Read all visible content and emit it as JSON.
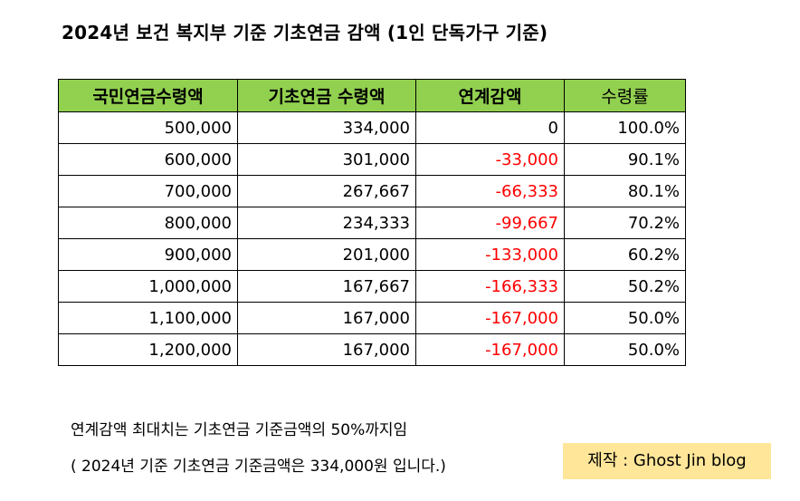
{
  "title": "2024년 보건 복지부 기준 기초연금 감액 (1인 단독가구 기준)",
  "table": {
    "headers": [
      "국민연금수령액",
      "기초연금 수령액",
      "연계감액",
      "수령률"
    ],
    "rows": [
      [
        "500,000",
        "334,000",
        "0",
        "100.0%"
      ],
      [
        "600,000",
        "301,000",
        "-33,000",
        "90.1%"
      ],
      [
        "700,000",
        "267,667",
        "-66,333",
        "80.1%"
      ],
      [
        "800,000",
        "234,333",
        "-99,667",
        "70.2%"
      ],
      [
        "900,000",
        "201,000",
        "-133,000",
        "60.2%"
      ],
      [
        "1,000,000",
        "167,667",
        "-166,333",
        "50.2%"
      ],
      [
        "1,100,000",
        "167,000",
        "-167,000",
        "50.0%"
      ],
      [
        "1,200,000",
        "167,000",
        "-167,000",
        "50.0%"
      ]
    ]
  },
  "notes": {
    "line1": "연계감액 최대치는 기초연금 기준금액의  50%까지임",
    "line2": "( 2024년 기준 기초연금 기준금액은 334,000원 입니다.)"
  },
  "credit": "제작 : Ghost Jin blog",
  "colors": {
    "header_bg": "#92d050",
    "negative": "#ff0000",
    "credit_bg": "#ffe699"
  }
}
